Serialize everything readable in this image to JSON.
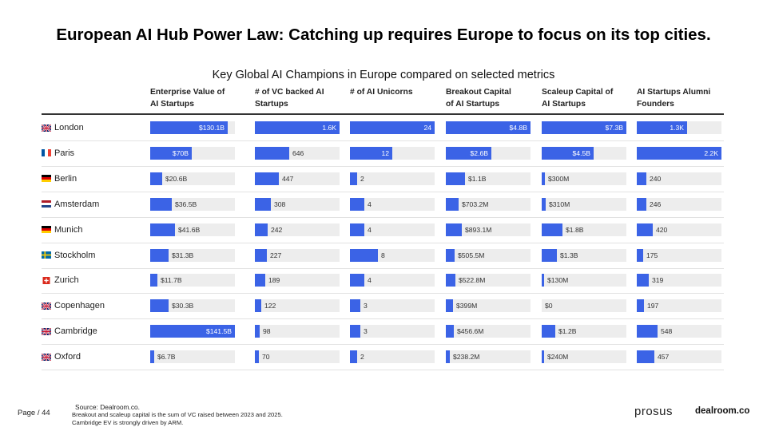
{
  "title": "European AI Hub Power Law: Catching up requires Europe to focus on its top cities.",
  "chart_data": {
    "type": "bar",
    "title": "Key Global AI Champions in Europe compared on selected metrics",
    "categories": [
      "London",
      "Paris",
      "Berlin",
      "Amsterdam",
      "Munich",
      "Stockholm",
      "Zurich",
      "Copenhagen",
      "Cambridge",
      "Oxford"
    ],
    "series": [
      {
        "name": "Enterprise Value of\nAI Startups",
        "max": 141.5,
        "values": [
          130.1,
          70,
          20.6,
          36.5,
          41.6,
          31.3,
          11.7,
          30.3,
          141.5,
          6.7
        ],
        "labels": [
          "$130.1B",
          "$70B",
          "$20.6B",
          "$36.5B",
          "$41.6B",
          "$31.3B",
          "$11.7B",
          "$30.3B",
          "$141.5B",
          "$6.7B"
        ]
      },
      {
        "name": "# of VC backed AI\nStartups",
        "max": 1600,
        "values": [
          1600,
          646,
          447,
          308,
          242,
          227,
          189,
          122,
          98,
          70
        ],
        "labels": [
          "1.6K",
          "646",
          "447",
          "308",
          "242",
          "227",
          "189",
          "122",
          "98",
          "70"
        ]
      },
      {
        "name": "# of AI Unicorns",
        "max": 24,
        "values": [
          24,
          12,
          2,
          4,
          4,
          8,
          4,
          3,
          3,
          2
        ],
        "labels": [
          "24",
          "12",
          "2",
          "4",
          "4",
          "8",
          "4",
          "3",
          "3",
          "2"
        ]
      },
      {
        "name": "Breakout Capital\nof AI Startups",
        "max": 4.8,
        "values": [
          4.8,
          2.6,
          1.1,
          0.7032,
          0.8931,
          0.5055,
          0.5228,
          0.399,
          0.4566,
          0.2382
        ],
        "labels": [
          "$4.8B",
          "$2.6B",
          "$1.1B",
          "$703.2M",
          "$893.1M",
          "$505.5M",
          "$522.8M",
          "$399M",
          "$456.6M",
          "$238.2M"
        ]
      },
      {
        "name": "Scaleup Capital of\nAI Startups",
        "max": 7.3,
        "values": [
          7.3,
          4.5,
          0.3,
          0.31,
          1.8,
          1.3,
          0.13,
          0,
          1.2,
          0.24
        ],
        "labels": [
          "$7.3B",
          "$4.5B",
          "$300M",
          "$310M",
          "$1.8B",
          "$1.3B",
          "$130M",
          "$0",
          "$1.2B",
          "$240M"
        ]
      },
      {
        "name": "AI Startups Alumni\nFounders",
        "max": 2200,
        "values": [
          1300,
          2200,
          240,
          246,
          420,
          175,
          319,
          197,
          548,
          457
        ],
        "labels": [
          "1.3K",
          "2.2K",
          "240",
          "246",
          "420",
          "175",
          "319",
          "197",
          "548",
          "457"
        ]
      }
    ]
  },
  "flags": {
    "London": "uk",
    "Paris": "fr",
    "Berlin": "de",
    "Amsterdam": "nl",
    "Munich": "de",
    "Stockholm": "se",
    "Zurich": "ch",
    "Copenhagen": "uk",
    "Cambridge": "uk",
    "Oxford": "uk"
  },
  "colors": {
    "bar": "#3b63e6",
    "track": "#ededed"
  },
  "footer": {
    "page": "Page / 44",
    "source": "Source:  Dealroom.co.",
    "note1": "Breakout and scaleup capital is the sum of VC raised between 2023 and 2025.",
    "note2": "Cambridge EV is strongly driven by ARM."
  },
  "logos": {
    "prosus": "prosus",
    "dealroom": "dealroom.co"
  }
}
